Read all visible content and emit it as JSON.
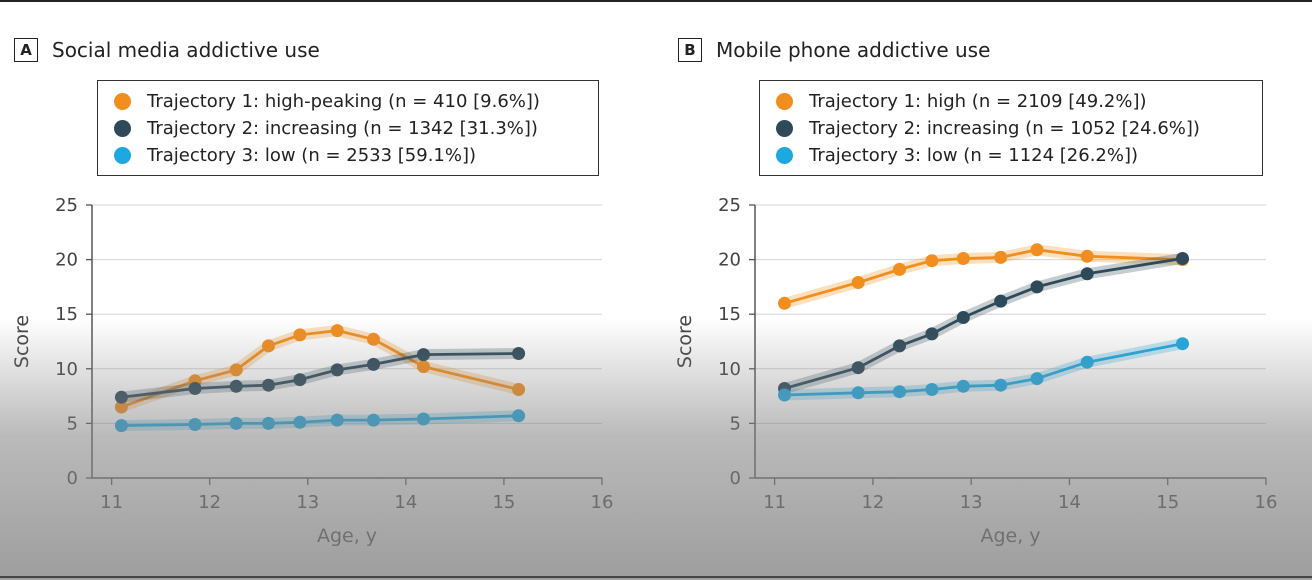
{
  "chart_data": [
    {
      "panel": "A",
      "type": "line",
      "title": "Social media addictive use",
      "xlabel": "Age, y",
      "ylabel": "Score",
      "xlim": [
        10.8,
        16
      ],
      "ylim": [
        0,
        25
      ],
      "xticks": [
        11,
        12,
        13,
        14,
        15,
        16
      ],
      "yticks": [
        0,
        5,
        10,
        15,
        20,
        25
      ],
      "grid": "horizontal",
      "legend": "top",
      "x": [
        11.1,
        11.85,
        12.27,
        12.6,
        12.92,
        13.3,
        13.67,
        14.18,
        15.15
      ],
      "series": [
        {
          "name": "Trajectory 1: high-peaking (n = 410 [9.6%])",
          "color": "#f28e1e",
          "values": [
            6.5,
            8.9,
            9.9,
            12.1,
            13.1,
            13.5,
            12.7,
            10.2,
            8.1
          ]
        },
        {
          "name": "Trajectory 2: increasing (n = 1342 [31.3%])",
          "color": "#2e4a5a",
          "values": [
            7.4,
            8.2,
            8.4,
            8.5,
            9.0,
            9.9,
            10.4,
            11.3,
            11.4
          ]
        },
        {
          "name": "Trajectory 3: low (n = 2533 [59.1%])",
          "color": "#1ea8e0",
          "values": [
            4.8,
            4.9,
            5.0,
            5.0,
            5.1,
            5.3,
            5.3,
            5.4,
            5.7
          ]
        }
      ]
    },
    {
      "panel": "B",
      "type": "line",
      "title": "Mobile phone addictive use",
      "xlabel": "Age, y",
      "ylabel": "Score",
      "xlim": [
        10.8,
        16
      ],
      "ylim": [
        0,
        25
      ],
      "xticks": [
        11,
        12,
        13,
        14,
        15,
        16
      ],
      "yticks": [
        0,
        5,
        10,
        15,
        20,
        25
      ],
      "grid": "horizontal",
      "legend": "top",
      "x": [
        11.1,
        11.85,
        12.27,
        12.6,
        12.92,
        13.3,
        13.67,
        14.18,
        15.15
      ],
      "series": [
        {
          "name": "Trajectory 1: high (n = 2109 [49.2%])",
          "color": "#f28e1e",
          "values": [
            16.0,
            17.9,
            19.1,
            19.9,
            20.1,
            20.2,
            20.9,
            20.3,
            20.0
          ]
        },
        {
          "name": "Trajectory 2: increasing (n = 1052 [24.6%])",
          "color": "#2e4a5a",
          "values": [
            8.2,
            10.1,
            12.1,
            13.2,
            14.7,
            16.2,
            17.5,
            18.7,
            20.1
          ]
        },
        {
          "name": "Trajectory 3: low (n = 1124 [26.2%])",
          "color": "#1ea8e0",
          "values": [
            7.6,
            7.8,
            7.9,
            8.1,
            8.4,
            8.5,
            9.1,
            10.6,
            12.3
          ]
        }
      ]
    }
  ]
}
